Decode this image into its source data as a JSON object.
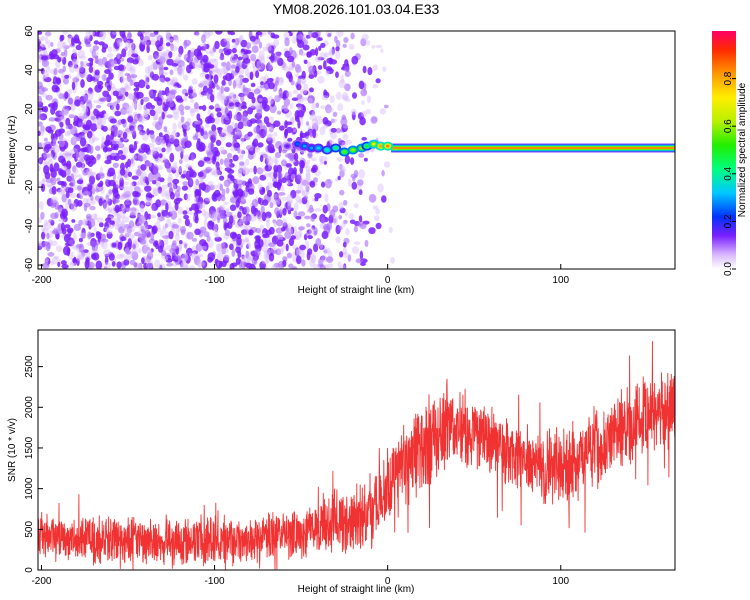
{
  "title": "YM08.2026.101.03.04.E33",
  "colors": {
    "snr_line": "#f03232",
    "scatter": "#7a1fff",
    "axis": "#000000"
  },
  "chart_data": [
    {
      "type": "heatmap",
      "name": "spectrogram",
      "xlabel": "Height of straight line (km)",
      "ylabel": "Frequency (Hz)",
      "xlim": [
        -202,
        166
      ],
      "ylim": [
        -62,
        60
      ],
      "xticks": [
        -200,
        -100,
        0,
        100
      ],
      "xtick_labels": [
        "-200",
        "-100",
        "0",
        "100"
      ],
      "yticks": [
        60,
        40,
        20,
        0,
        -20,
        -40,
        -60
      ],
      "ytick_labels": [
        "60",
        "40",
        "20",
        "0",
        "-20",
        "-40",
        "-60"
      ],
      "colorbar": {
        "label": "Normalized spectral amplitude",
        "range": [
          0,
          1
        ],
        "ticks": [
          0.0,
          0.2,
          0.4,
          0.6,
          0.8
        ],
        "tick_labels": [
          "0.0",
          "0.2",
          "0.4",
          "0.6",
          "0.8"
        ]
      },
      "noise_region_km": [
        -202,
        5
      ],
      "noise_fade_start_km": -60,
      "signal_line": {
        "frequency_hz": 0,
        "start_km": 2,
        "end_km": 166,
        "amplitude": 1.0
      },
      "onset_blobs": [
        {
          "x": -58,
          "y": 1,
          "amplitude": 0.15
        },
        {
          "x": -52,
          "y": 2,
          "amplitude": 0.25
        },
        {
          "x": -48,
          "y": 1,
          "amplitude": 0.3
        },
        {
          "x": -44,
          "y": 0,
          "amplitude": 0.3
        },
        {
          "x": -40,
          "y": 0,
          "amplitude": 0.35
        },
        {
          "x": -35,
          "y": -1,
          "amplitude": 0.4
        },
        {
          "x": -30,
          "y": 0,
          "amplitude": 0.45
        },
        {
          "x": -25,
          "y": -2,
          "amplitude": 0.55
        },
        {
          "x": -20,
          "y": -1,
          "amplitude": 0.6
        },
        {
          "x": -15,
          "y": 0,
          "amplitude": 0.6
        },
        {
          "x": -12,
          "y": 1,
          "amplitude": 0.5
        },
        {
          "x": -8,
          "y": 2,
          "amplitude": 0.7
        },
        {
          "x": -4,
          "y": 1,
          "amplitude": 0.8
        },
        {
          "x": 0,
          "y": 1,
          "amplitude": 0.85
        }
      ]
    },
    {
      "type": "line",
      "name": "snr",
      "xlabel": "Height of straight line (km)",
      "ylabel": "SNR (10 * v/v)",
      "xlim": [
        -202,
        166
      ],
      "ylim": [
        0,
        2950
      ],
      "xticks": [
        -200,
        -100,
        0,
        100
      ],
      "xtick_labels": [
        "-200",
        "-100",
        "0",
        "100"
      ],
      "yticks": [
        0,
        500,
        1000,
        1500,
        2000,
        2500
      ],
      "ytick_labels": [
        "0",
        "500",
        "1000",
        "1500",
        "2000",
        "2500"
      ],
      "envelope": {
        "x": [
          -202,
          -180,
          -150,
          -120,
          -90,
          -60,
          -40,
          -20,
          -5,
          5,
          20,
          35,
          50,
          70,
          90,
          110,
          130,
          150,
          166
        ],
        "center": [
          410,
          390,
          360,
          360,
          380,
          420,
          500,
          620,
          780,
          1150,
          1500,
          1780,
          1700,
          1400,
          1250,
          1350,
          1650,
          1900,
          2000
        ],
        "spread": [
          260,
          270,
          270,
          270,
          270,
          280,
          300,
          380,
          450,
          500,
          520,
          480,
          450,
          420,
          420,
          450,
          480,
          480,
          460
        ]
      }
    }
  ]
}
